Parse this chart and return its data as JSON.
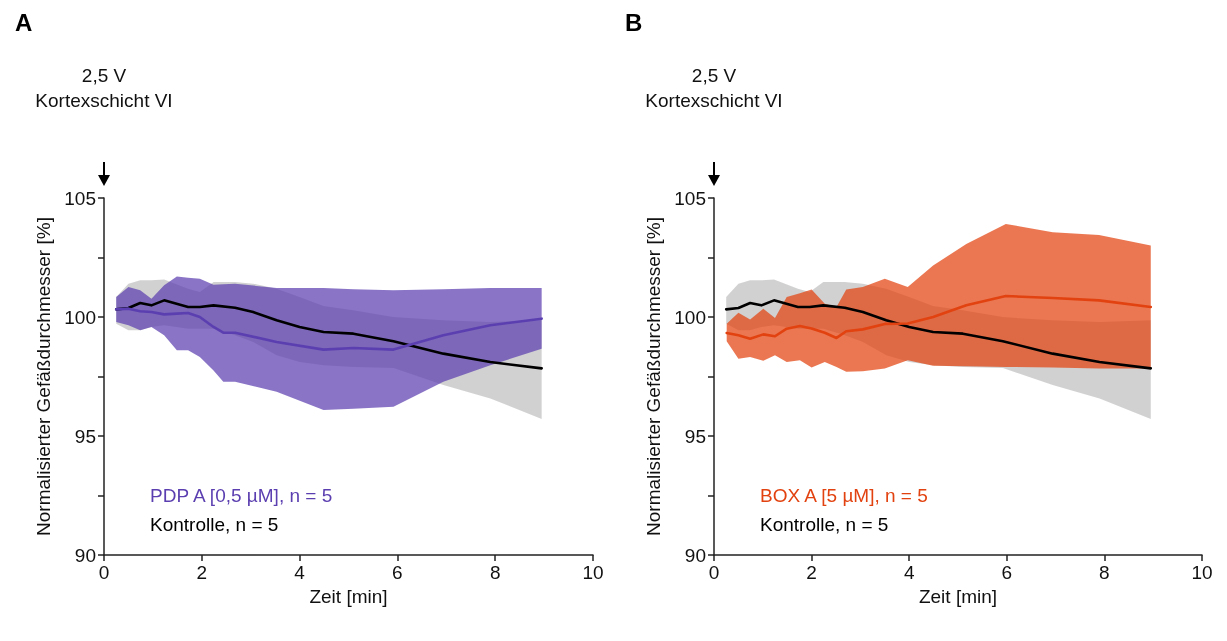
{
  "chart_data": [
    {
      "type": "line",
      "title": "A",
      "annotations": [
        "2,5 V",
        "Kortexschicht VI"
      ],
      "xlabel": "Zeit [min]",
      "ylabel": "Normalisierter Gefäßdurchmesser [%]",
      "xlim": [
        0,
        10
      ],
      "xticks": [
        0,
        2,
        4,
        6,
        8,
        10
      ],
      "ylim": [
        90,
        105
      ],
      "yticks": [
        90,
        {
          "value": 92.5,
          "label": null
        },
        95,
        {
          "value": 97.5,
          "label": null
        },
        100,
        {
          "value": 102.5,
          "label": null
        },
        105
      ],
      "legend": "bottom left",
      "grid": false,
      "series": [
        {
          "name": "PDP A [0,5 µM], n = 5",
          "color": "#5b3fb0",
          "x": [
            0.25,
            0.5,
            0.74,
            0.97,
            1.23,
            1.49,
            1.72,
            1.96,
            2.24,
            2.44,
            2.68,
            3.53,
            4.49,
            5.1,
            5.92,
            6.94,
            7.9,
            8.95
          ],
          "values": [
            100.32,
            100.35,
            100.24,
            100.21,
            100.11,
            100.14,
            100.17,
            100.0,
            99.58,
            99.34,
            99.34,
            98.95,
            98.63,
            98.7,
            98.63,
            99.23,
            99.65,
            99.93
          ],
          "upper": [
            100.84,
            101.26,
            101.12,
            100.77,
            101.33,
            101.7,
            101.65,
            101.61,
            101.35,
            101.38,
            101.4,
            101.22,
            101.22,
            101.17,
            101.12,
            101.17,
            101.22,
            101.22
          ],
          "lower": [
            99.79,
            99.65,
            99.44,
            99.58,
            99.23,
            98.6,
            98.6,
            98.32,
            97.75,
            97.28,
            97.28,
            96.86,
            96.09,
            96.15,
            96.23,
            97.28,
            97.97,
            98.67
          ]
        },
        {
          "name": "Kontrolle, n = 5",
          "color": "#000000",
          "x": [
            0.25,
            0.5,
            0.74,
            0.97,
            1.23,
            1.72,
            1.96,
            2.24,
            2.68,
            3.05,
            3.53,
            4.0,
            4.49,
            5.1,
            5.92,
            6.94,
            7.9,
            8.95
          ],
          "values": [
            100.32,
            100.38,
            100.59,
            100.49,
            100.7,
            100.42,
            100.42,
            100.49,
            100.39,
            100.21,
            99.86,
            99.58,
            99.37,
            99.3,
            98.98,
            98.46,
            98.11,
            97.84
          ],
          "upper": [
            100.84,
            101.4,
            101.54,
            101.54,
            101.58,
            101.19,
            101.05,
            101.47,
            101.47,
            101.4,
            101.19,
            100.84,
            100.46,
            100.28,
            100.0,
            99.86,
            99.79,
            99.86
          ],
          "lower": [
            99.72,
            99.44,
            99.44,
            99.58,
            99.65,
            99.51,
            99.51,
            99.51,
            99.23,
            98.95,
            98.39,
            98.11,
            97.97,
            97.9,
            97.86,
            97.14,
            96.58,
            95.71
          ]
        }
      ]
    },
    {
      "type": "line",
      "title": "B",
      "annotations": [
        "2,5 V",
        "Kortexschicht VI"
      ],
      "xlabel": "Zeit [min]",
      "ylabel": "Normalisierter Gefäßdurchmesser [%]",
      "xlim": [
        0,
        10
      ],
      "xticks": [
        0,
        2,
        4,
        6,
        8,
        10
      ],
      "ylim": [
        90,
        105
      ],
      "yticks": [
        90,
        {
          "value": 92.5,
          "label": null
        },
        95,
        {
          "value": 97.5,
          "label": null
        },
        100,
        {
          "value": 102.5,
          "label": null
        },
        105
      ],
      "legend": "bottom left",
      "grid": false,
      "series": [
        {
          "name": "BOX A [5 µM], n = 5",
          "color": "#e2420f",
          "x": [
            0.26,
            0.5,
            0.74,
            1.01,
            1.25,
            1.49,
            1.76,
            2.0,
            2.27,
            2.51,
            2.71,
            3.05,
            3.5,
            3.97,
            4.49,
            5.17,
            5.98,
            6.94,
            7.89,
            8.95
          ],
          "values": [
            99.33,
            99.23,
            99.09,
            99.27,
            99.19,
            99.51,
            99.62,
            99.52,
            99.34,
            99.12,
            99.4,
            99.48,
            99.71,
            99.73,
            100.0,
            100.49,
            100.88,
            100.8,
            100.7,
            100.42
          ],
          "upper": [
            99.72,
            100.18,
            99.9,
            100.35,
            99.96,
            100.84,
            101.0,
            101.16,
            100.56,
            100.42,
            101.16,
            101.26,
            101.61,
            101.26,
            102.16,
            103.07,
            103.91,
            103.56,
            103.45,
            103.0
          ],
          "lower": [
            98.98,
            98.25,
            98.32,
            98.16,
            98.39,
            98.11,
            98.18,
            97.88,
            98.11,
            97.9,
            97.7,
            97.72,
            97.84,
            98.18,
            97.95,
            97.93,
            97.9,
            97.88,
            97.84,
            97.84
          ]
        },
        {
          "name": "Kontrolle, n = 5",
          "color": "#000000",
          "x": [
            0.25,
            0.5,
            0.74,
            0.97,
            1.23,
            1.72,
            1.96,
            2.24,
            2.68,
            3.05,
            3.53,
            4.0,
            4.49,
            5.1,
            5.92,
            6.94,
            7.9,
            8.95
          ],
          "values": [
            100.32,
            100.38,
            100.59,
            100.49,
            100.7,
            100.42,
            100.42,
            100.49,
            100.39,
            100.21,
            99.86,
            99.58,
            99.37,
            99.3,
            98.98,
            98.46,
            98.11,
            97.84
          ],
          "upper": [
            100.84,
            101.4,
            101.54,
            101.54,
            101.58,
            101.19,
            101.05,
            101.47,
            101.47,
            101.4,
            101.19,
            100.84,
            100.46,
            100.28,
            100.0,
            99.86,
            99.79,
            99.86
          ],
          "lower": [
            99.72,
            99.44,
            99.44,
            99.58,
            99.65,
            99.51,
            99.51,
            99.51,
            99.23,
            98.95,
            98.39,
            98.11,
            97.97,
            97.9,
            97.86,
            97.14,
            96.58,
            95.71
          ]
        }
      ]
    }
  ]
}
